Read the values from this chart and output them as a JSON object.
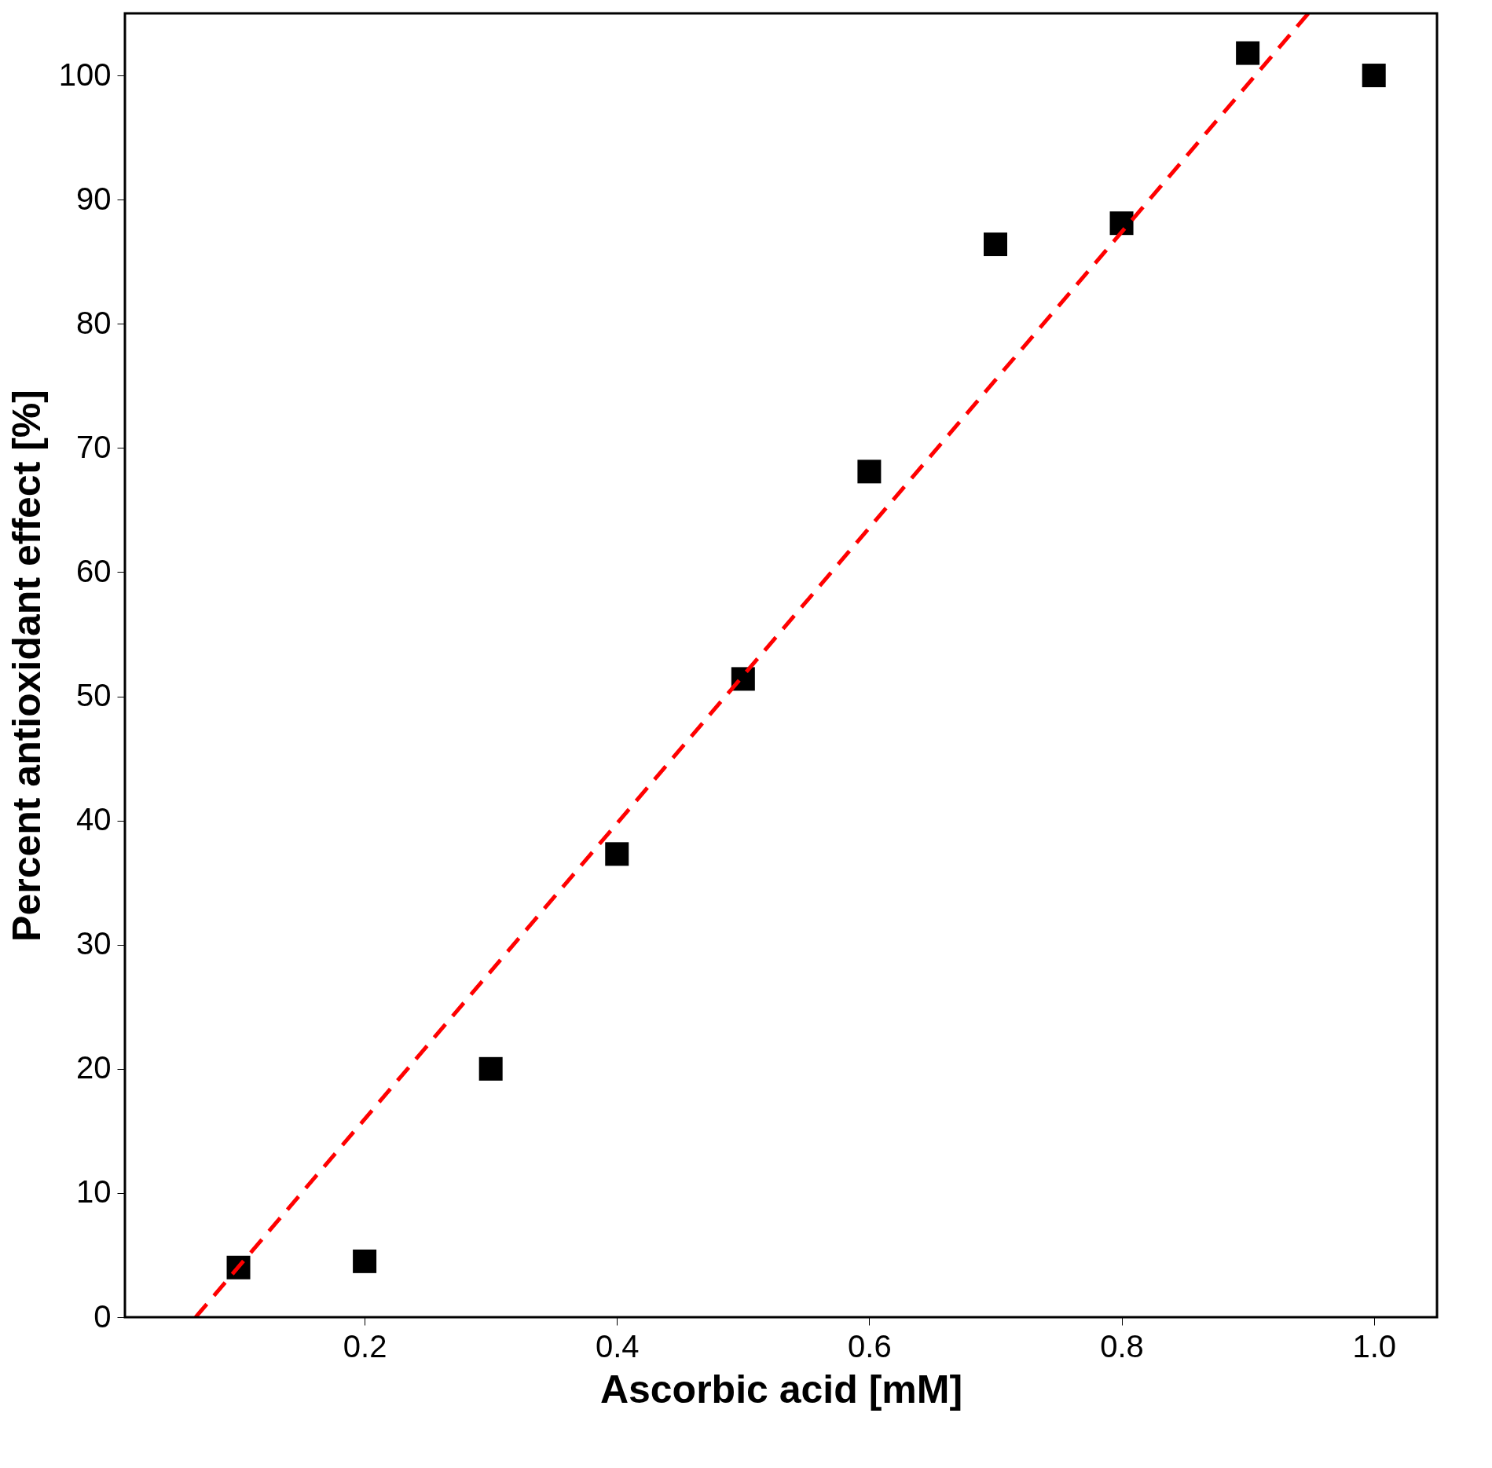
{
  "chart_data": {
    "type": "scatter",
    "xlabel": "Ascorbic acid [mM]",
    "ylabel": "Percent antioxidant effect [%]",
    "x": [
      0.1,
      0.2,
      0.3,
      0.4,
      0.5,
      0.6,
      0.7,
      0.8,
      0.9,
      1.0
    ],
    "series": [
      {
        "color": "#000000",
        "marker": "square",
        "values": [
          4.0,
          4.5,
          20.0,
          37.3,
          51.4,
          68.1,
          86.4,
          88.1,
          101.8,
          100.0
        ]
      },
      {
        "type": "line",
        "color": "#ff0000",
        "line_style": "dashed",
        "marker": "none",
        "x": [
          0.066,
          0.948
        ],
        "values": [
          0,
          105
        ]
      }
    ],
    "xlim": [
      0.01,
      1.05
    ],
    "ylim": [
      0,
      105
    ],
    "xticks": [
      {
        "value": 0.2,
        "label": "0.2"
      },
      {
        "value": 0.4,
        "label": "0.4"
      },
      {
        "value": 0.6,
        "label": "0.6"
      },
      {
        "value": 0.8,
        "label": "0.8"
      },
      {
        "value": 1.0,
        "label": "1.0"
      }
    ],
    "yticks": [
      0,
      10,
      20,
      30,
      40,
      50,
      60,
      70,
      80,
      90,
      100
    ],
    "grid": false
  }
}
